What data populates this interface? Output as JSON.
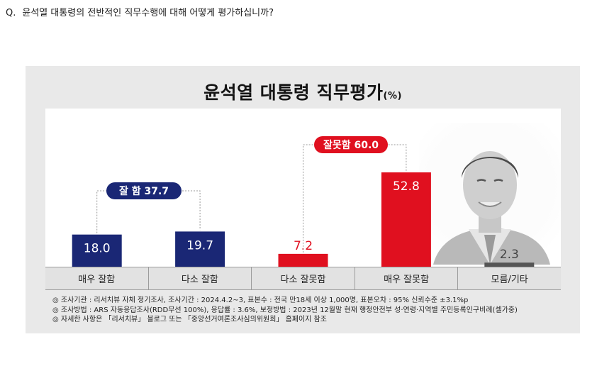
{
  "question": {
    "prefix": "Q.",
    "text": "윤석열 대통령의 전반적인 직무수행에 대해 어떻게 평가하십니까?"
  },
  "chart_data": {
    "type": "bar",
    "title": "윤석열 대통령 직무평가",
    "title_unit": "(%)",
    "categories": [
      "매우 잘함",
      "다소 잘함",
      "다소 잘못함",
      "매우 잘못함",
      "모름/기타"
    ],
    "values": [
      18.0,
      19.7,
      7.2,
      52.8,
      2.3
    ],
    "value_labels": [
      "18.0",
      "19.7",
      "7.2",
      "52.8",
      "2.3"
    ],
    "colors": [
      "#1a2775",
      "#1a2775",
      "#e0101f",
      "#e0101f",
      "#555555"
    ],
    "label_colors": [
      "#ffffff",
      "#ffffff",
      "#e0101f",
      "#ffffff",
      "#444444"
    ],
    "ylim": [
      0,
      60
    ],
    "grid": false,
    "groups": [
      {
        "label": "잘 함 37.7",
        "value": 37.7,
        "members": [
          0,
          1
        ],
        "color": "#1a2775"
      },
      {
        "label": "잘못함 60.0",
        "value": 60.0,
        "members": [
          2,
          3
        ],
        "color": "#e0101f"
      }
    ]
  },
  "notes": [
    "◎ 조사기관 : 리서치뷰 자체 정기조사, 조사기간 : 2024.4.2~3, 표본수 : 전국 만18세 이상 1,000명, 표본오차 : 95% 신뢰수준 ±3.1%p",
    "◎ 조사방법 : ARS 자동응답조사(RDD무선 100%), 응답률 : 3.6%, 보정방법 : 2023년 12월말 현재 행정안전부 성·연령·지역별 주민등록인구비례(셀가중)",
    "◎ 자세한 사항은 「리서치뷰」 블로그 또는 「중앙선거여론조사심의위원회」 홈페이지 참조"
  ]
}
